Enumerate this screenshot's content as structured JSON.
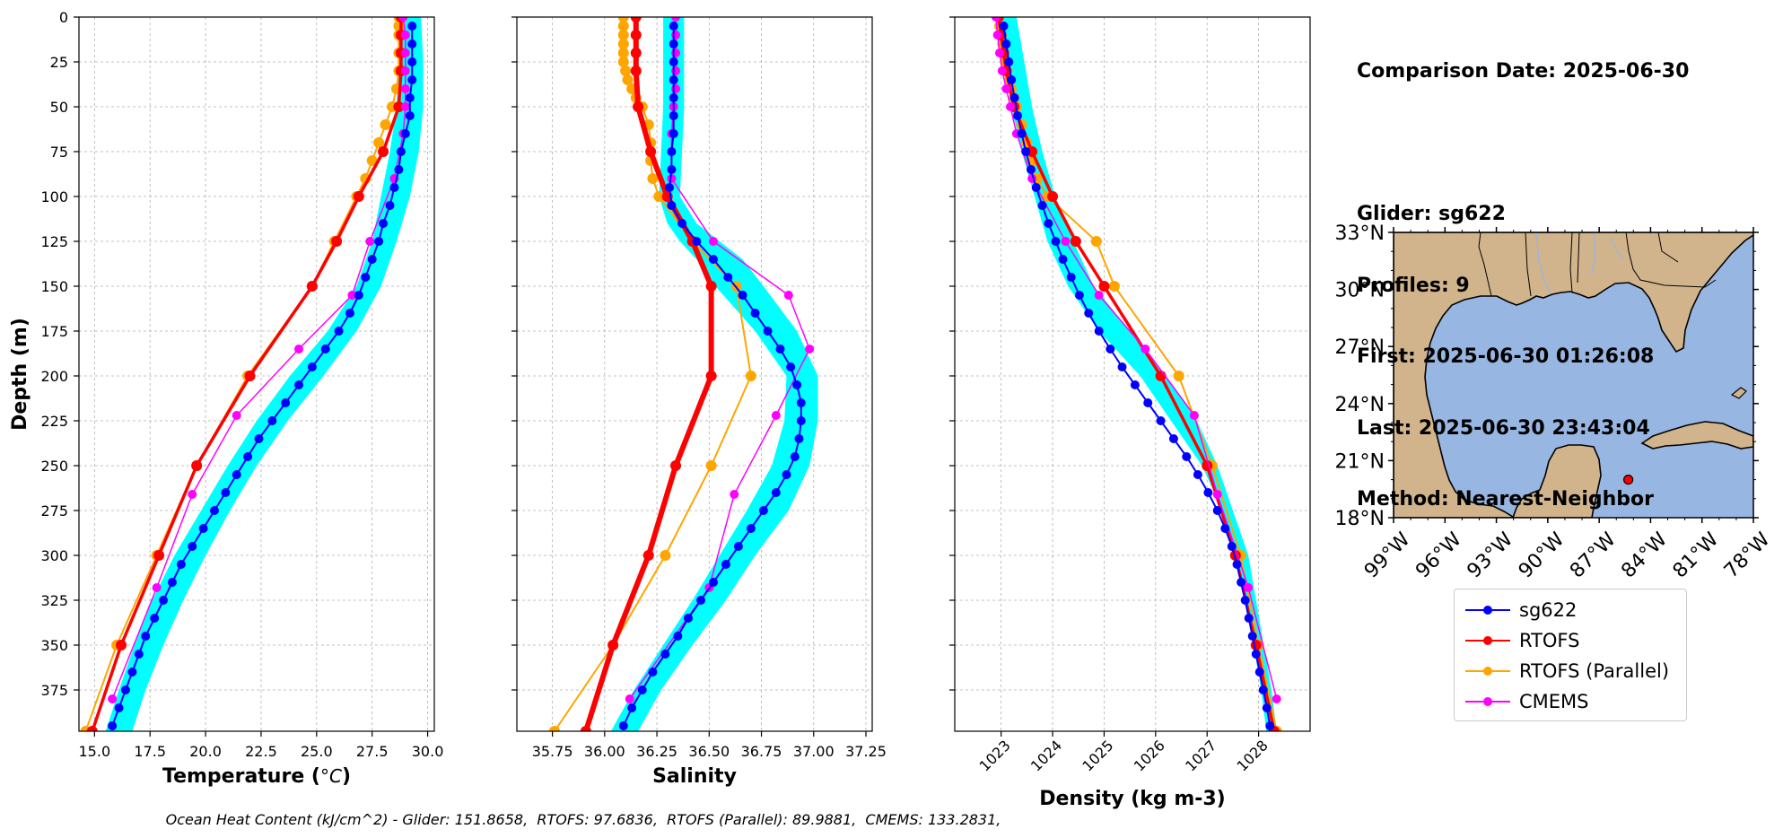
{
  "chart_data": [
    {
      "type": "line",
      "xlabel_prefix": "Temperature (",
      "xlabel_unit": "°C",
      "xlabel_suffix": ")",
      "ylabel": "Depth (m)",
      "xlim": [
        14.3,
        30.3
      ],
      "ylim": [
        398,
        0
      ],
      "xticks": [
        "15.0",
        "17.5",
        "20.0",
        "22.5",
        "25.0",
        "27.5",
        "30.0"
      ],
      "xtick_values": [
        15,
        17.5,
        20,
        22.5,
        25,
        27.5,
        30
      ],
      "yticks": [
        "0",
        "25",
        "50",
        "75",
        "100",
        "125",
        "150",
        "175",
        "200",
        "225",
        "250",
        "275",
        "300",
        "325",
        "350",
        "375"
      ],
      "ytick_values": [
        0,
        25,
        50,
        75,
        100,
        125,
        150,
        175,
        200,
        225,
        250,
        275,
        300,
        325,
        350,
        375
      ],
      "glider_band": {
        "depth": [
          0,
          25,
          50,
          75,
          100,
          125,
          150,
          175,
          200,
          225,
          250,
          275,
          300,
          325,
          350,
          375,
          398
        ],
        "min": [
          28.6,
          28.7,
          28.6,
          28.3,
          27.9,
          27.5,
          26.8,
          25.5,
          23.8,
          22.3,
          21.0,
          19.8,
          18.6,
          17.6,
          16.8,
          16.1,
          15.5
        ],
        "max": [
          29.7,
          29.8,
          29.8,
          29.6,
          29.2,
          28.6,
          27.9,
          26.8,
          25.3,
          23.7,
          22.3,
          21.1,
          20.0,
          19.0,
          18.1,
          17.3,
          16.7
        ]
      },
      "series": [
        {
          "name": "sg622",
          "color": "#0000ff",
          "lw": 2,
          "marker": 5,
          "depth": [
            5,
            15,
            25,
            35,
            45,
            55,
            65,
            75,
            85,
            95,
            105,
            115,
            125,
            135,
            145,
            155,
            165,
            175,
            185,
            195,
            205,
            215,
            225,
            235,
            245,
            255,
            265,
            275,
            285,
            295,
            305,
            315,
            325,
            335,
            345,
            355,
            365,
            375,
            385,
            395
          ],
          "values": [
            29.3,
            29.3,
            29.3,
            29.3,
            29.2,
            29.2,
            29.0,
            28.8,
            28.7,
            28.5,
            28.3,
            28.0,
            27.8,
            27.5,
            27.2,
            26.9,
            26.5,
            26.0,
            25.4,
            24.8,
            24.2,
            23.6,
            23.0,
            22.4,
            21.9,
            21.4,
            20.9,
            20.4,
            19.9,
            19.4,
            18.9,
            18.5,
            18.1,
            17.7,
            17.3,
            17.0,
            16.7,
            16.4,
            16.1,
            15.8
          ]
        },
        {
          "name": "RTOFS",
          "color": "#ff0000",
          "lw": 3.5,
          "marker": 6,
          "depth": [
            0,
            10,
            20,
            30,
            50,
            75,
            100,
            125,
            150,
            200,
            250,
            300,
            350,
            398
          ],
          "values": [
            28.8,
            28.8,
            28.8,
            28.8,
            28.7,
            28.0,
            26.9,
            25.9,
            24.8,
            22.0,
            19.6,
            17.9,
            16.2,
            14.9
          ]
        },
        {
          "name": "RTOFS (Parallel)",
          "color": "#ffa500",
          "lw": 2,
          "marker": 6,
          "depth": [
            0,
            5,
            10,
            20,
            30,
            40,
            50,
            60,
            70,
            80,
            90,
            100,
            125,
            150,
            200,
            250,
            300,
            350,
            398
          ],
          "values": [
            28.7,
            28.7,
            28.7,
            28.7,
            28.7,
            28.6,
            28.4,
            28.1,
            27.8,
            27.5,
            27.2,
            26.8,
            25.8,
            24.8,
            21.9,
            19.6,
            17.8,
            16.0,
            14.6
          ]
        },
        {
          "name": "CMEMS",
          "color": "#ff00ff",
          "lw": 1.5,
          "marker": 5,
          "depth": [
            0,
            10,
            20,
            30,
            40,
            50,
            65,
            90,
            125,
            155,
            185,
            222,
            266,
            318,
            380
          ],
          "values": [
            28.9,
            29.0,
            29.0,
            29.0,
            29.0,
            29.0,
            28.9,
            28.5,
            27.4,
            26.6,
            24.2,
            21.4,
            19.4,
            17.8,
            15.8
          ]
        }
      ]
    },
    {
      "type": "line",
      "xlabel": "Salinity",
      "xlim": [
        35.58,
        37.28
      ],
      "ylim": [
        398,
        0
      ],
      "xticks": [
        "35.75",
        "36.00",
        "36.25",
        "36.50",
        "36.75",
        "37.00",
        "37.25"
      ],
      "xtick_values": [
        35.75,
        36.0,
        36.25,
        36.5,
        36.75,
        37.0,
        37.25
      ],
      "glider_band": {
        "depth": [
          0,
          25,
          50,
          75,
          100,
          115,
          125,
          135,
          150,
          175,
          200,
          225,
          250,
          275,
          300,
          325,
          350,
          375,
          398
        ],
        "min": [
          36.28,
          36.28,
          36.28,
          36.27,
          36.26,
          36.3,
          36.36,
          36.44,
          36.53,
          36.72,
          36.87,
          36.86,
          36.8,
          36.68,
          36.55,
          36.42,
          36.28,
          36.14,
          36.03
        ],
        "max": [
          36.38,
          36.38,
          36.38,
          36.37,
          36.36,
          36.44,
          36.55,
          36.66,
          36.76,
          36.92,
          37.02,
          37.02,
          36.98,
          36.88,
          36.72,
          36.58,
          36.42,
          36.27,
          36.16
        ]
      },
      "series": [
        {
          "name": "sg622",
          "color": "#0000ff",
          "lw": 2,
          "marker": 5,
          "depth": [
            5,
            15,
            25,
            35,
            45,
            55,
            65,
            75,
            85,
            95,
            105,
            115,
            125,
            135,
            145,
            155,
            165,
            175,
            185,
            195,
            205,
            215,
            225,
            235,
            245,
            255,
            265,
            275,
            285,
            295,
            305,
            315,
            325,
            335,
            345,
            355,
            365,
            375,
            385,
            395
          ],
          "values": [
            36.33,
            36.33,
            36.33,
            36.33,
            36.33,
            36.33,
            36.33,
            36.32,
            36.32,
            36.31,
            36.32,
            36.37,
            36.44,
            36.52,
            36.59,
            36.66,
            36.72,
            36.78,
            36.84,
            36.89,
            36.92,
            36.94,
            36.94,
            36.93,
            36.91,
            36.87,
            36.82,
            36.76,
            36.7,
            36.64,
            36.58,
            36.52,
            36.46,
            36.4,
            36.35,
            36.29,
            36.23,
            36.18,
            36.13,
            36.09
          ]
        },
        {
          "name": "RTOFS",
          "color": "#ff0000",
          "lw": 6,
          "marker": 6,
          "depth": [
            0,
            10,
            20,
            30,
            50,
            75,
            100,
            125,
            150,
            200,
            250,
            300,
            350,
            398
          ],
          "values": [
            36.15,
            36.15,
            36.15,
            36.15,
            36.16,
            36.22,
            36.3,
            36.42,
            36.51,
            36.51,
            36.34,
            36.21,
            36.04,
            35.91
          ]
        },
        {
          "name": "RTOFS (Parallel)",
          "color": "#ffa500",
          "lw": 2,
          "marker": 6,
          "depth": [
            0,
            5,
            10,
            15,
            20,
            25,
            30,
            35,
            40,
            45,
            50,
            60,
            70,
            80,
            90,
            100,
            125,
            150,
            200,
            250,
            300,
            350,
            398
          ],
          "values": [
            36.09,
            36.09,
            36.09,
            36.09,
            36.09,
            36.09,
            36.1,
            36.11,
            36.13,
            36.15,
            36.18,
            36.21,
            36.22,
            36.22,
            36.23,
            36.26,
            36.42,
            36.63,
            36.7,
            36.51,
            36.29,
            36.04,
            35.76
          ]
        },
        {
          "name": "CMEMS",
          "color": "#ff00ff",
          "lw": 1.5,
          "marker": 5,
          "depth": [
            0,
            10,
            20,
            30,
            40,
            50,
            65,
            90,
            125,
            155,
            185,
            222,
            266,
            318,
            380
          ],
          "values": [
            36.34,
            36.34,
            36.34,
            36.34,
            36.34,
            36.33,
            36.32,
            36.32,
            36.52,
            36.88,
            36.98,
            36.82,
            36.62,
            36.5,
            36.12
          ]
        }
      ]
    },
    {
      "type": "line",
      "xlabel": "Density (kg m-3)",
      "xlim": [
        1022.1,
        1029.0
      ],
      "ylim": [
        398,
        0
      ],
      "xticks": [
        "1023",
        "1024",
        "1025",
        "1026",
        "1027",
        "1028"
      ],
      "xtick_values": [
        1023,
        1024,
        1025,
        1026,
        1027,
        1028
      ],
      "glider_band": {
        "depth": [
          0,
          25,
          50,
          75,
          100,
          125,
          150,
          175,
          200,
          225,
          250,
          275,
          300,
          325,
          350,
          375,
          398
        ],
        "min": [
          1022.9,
          1023.05,
          1023.2,
          1023.4,
          1023.65,
          1023.9,
          1024.3,
          1024.9,
          1025.7,
          1026.3,
          1026.9,
          1027.3,
          1027.6,
          1027.75,
          1027.9,
          1028.05,
          1028.15
        ],
        "max": [
          1023.3,
          1023.45,
          1023.6,
          1023.8,
          1024.05,
          1024.4,
          1024.8,
          1025.5,
          1026.2,
          1026.8,
          1027.2,
          1027.5,
          1027.8,
          1027.95,
          1028.1,
          1028.25,
          1028.35
        ]
      },
      "series": [
        {
          "name": "sg622",
          "color": "#0000ff",
          "lw": 2,
          "marker": 5,
          "depth": [
            5,
            15,
            25,
            35,
            45,
            55,
            65,
            75,
            85,
            95,
            105,
            115,
            125,
            135,
            145,
            155,
            165,
            175,
            185,
            195,
            205,
            215,
            225,
            235,
            245,
            255,
            265,
            275,
            285,
            295,
            305,
            315,
            325,
            335,
            345,
            355,
            365,
            375,
            385,
            395
          ],
          "values": [
            1023.05,
            1023.1,
            1023.15,
            1023.2,
            1023.26,
            1023.32,
            1023.4,
            1023.48,
            1023.58,
            1023.68,
            1023.8,
            1023.92,
            1024.06,
            1024.2,
            1024.36,
            1024.52,
            1024.7,
            1024.9,
            1025.12,
            1025.35,
            1025.6,
            1025.85,
            1026.1,
            1026.35,
            1026.6,
            1026.82,
            1027.02,
            1027.2,
            1027.35,
            1027.48,
            1027.58,
            1027.66,
            1027.74,
            1027.81,
            1027.88,
            1027.95,
            1028.02,
            1028.09,
            1028.16,
            1028.22
          ]
        },
        {
          "name": "RTOFS",
          "color": "#ff0000",
          "lw": 3.5,
          "marker": 6,
          "depth": [
            0,
            10,
            20,
            30,
            50,
            75,
            100,
            125,
            150,
            200,
            250,
            300,
            350,
            398
          ],
          "values": [
            1022.95,
            1023.0,
            1023.05,
            1023.1,
            1023.25,
            1023.6,
            1024.0,
            1024.45,
            1025.0,
            1026.1,
            1027.0,
            1027.55,
            1027.95,
            1028.3
          ]
        },
        {
          "name": "RTOFS (Parallel)",
          "color": "#ffa500",
          "lw": 2,
          "marker": 6,
          "depth": [
            0,
            5,
            10,
            15,
            20,
            25,
            30,
            35,
            40,
            45,
            50,
            60,
            70,
            80,
            90,
            100,
            125,
            150,
            200,
            250,
            300,
            350,
            398
          ],
          "values": [
            1022.95,
            1022.97,
            1023.0,
            1023.03,
            1023.06,
            1023.09,
            1023.12,
            1023.16,
            1023.2,
            1023.25,
            1023.3,
            1023.4,
            1023.5,
            1023.6,
            1023.7,
            1023.9,
            1024.85,
            1025.2,
            1026.45,
            1027.1,
            1027.65,
            1028.0,
            1028.35
          ]
        },
        {
          "name": "CMEMS",
          "color": "#ff00ff",
          "lw": 1.5,
          "marker": 5,
          "depth": [
            0,
            10,
            20,
            30,
            40,
            50,
            65,
            90,
            125,
            155,
            185,
            222,
            266,
            318,
            380
          ],
          "values": [
            1022.9,
            1022.93,
            1022.97,
            1023.02,
            1023.1,
            1023.18,
            1023.3,
            1023.6,
            1024.25,
            1024.9,
            1025.8,
            1026.75,
            1027.2,
            1027.8,
            1028.35
          ]
        }
      ]
    }
  ],
  "info": {
    "comparison_date": "Comparison Date: 2025-06-30",
    "glider": "Glider: sg622",
    "profiles": "Profiles: 9",
    "first": "First: 2025-06-30 01:26:08",
    "last": "Last: 2025-06-30 23:43:04",
    "method": "Method: Nearest-Neighbor"
  },
  "map": {
    "lat_ticks": [
      "33°N",
      "30°N",
      "27°N",
      "24°N",
      "21°N",
      "18°N"
    ],
    "lat_values": [
      33,
      30,
      27,
      24,
      21,
      18
    ],
    "lon_ticks": [
      "99°W",
      "96°W",
      "93°W",
      "90°W",
      "87°W",
      "84°W",
      "81°W",
      "78°W"
    ],
    "lon_values": [
      -99,
      -96,
      -93,
      -90,
      -87,
      -84,
      -81,
      -78
    ],
    "extent": {
      "lon": [
        -99,
        -78
      ],
      "lat": [
        18,
        33
      ]
    },
    "glider_position": {
      "lon": -85.3,
      "lat": 20.0
    },
    "land_color": "#d2b48c",
    "ocean_color": "#97b6e1",
    "marker_color": "#ff0000"
  },
  "legend": [
    {
      "label": "sg622",
      "color": "#0000ff"
    },
    {
      "label": "RTOFS",
      "color": "#ff0000"
    },
    {
      "label": "RTOFS (Parallel)",
      "color": "#ffa500"
    },
    {
      "label": "CMEMS",
      "color": "#ff00ff"
    }
  ],
  "footer": "Ocean Heat Content (kJ/cm^2) - Glider: 151.8658,  RTOFS: 97.6836,  RTOFS (Parallel): 89.9881,  CMEMS: 133.2831,"
}
